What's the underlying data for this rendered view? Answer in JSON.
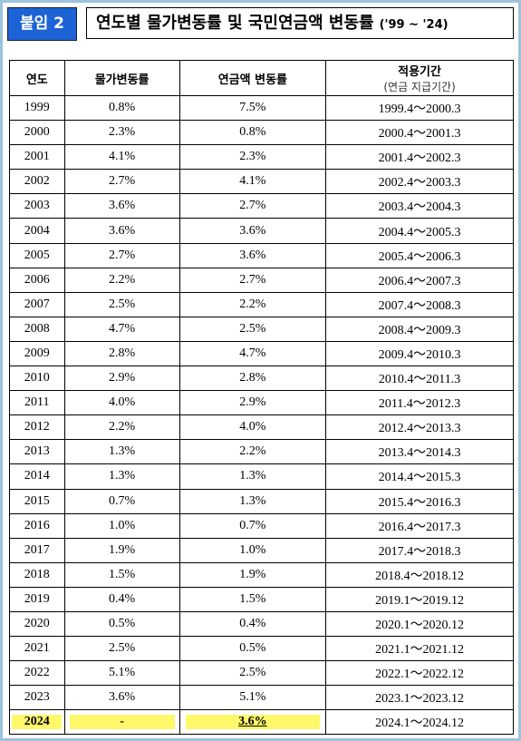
{
  "header": {
    "badge": "붙임 2",
    "title": "연도별 물가변동률 및 국민연금액 변동률",
    "title_suffix": "('99 ~ '24)"
  },
  "table": {
    "columns": [
      "연도",
      "물가변동률",
      "연금액 변동률",
      [
        "적용기간",
        "(연금 지급기간)"
      ]
    ],
    "rows": [
      [
        "1999",
        "0.8%",
        "7.5%",
        "1999.4～2000.3"
      ],
      [
        "2000",
        "2.3%",
        "0.8%",
        "2000.4～2001.3"
      ],
      [
        "2001",
        "4.1%",
        "2.3%",
        "2001.4～2002.3"
      ],
      [
        "2002",
        "2.7%",
        "4.1%",
        "2002.4～2003.3"
      ],
      [
        "2003",
        "3.6%",
        "2.7%",
        "2003.4～2004.3"
      ],
      [
        "2004",
        "3.6%",
        "3.6%",
        "2004.4～2005.3"
      ],
      [
        "2005",
        "2.7%",
        "3.6%",
        "2005.4～2006.3"
      ],
      [
        "2006",
        "2.2%",
        "2.7%",
        "2006.4～2007.3"
      ],
      [
        "2007",
        "2.5%",
        "2.2%",
        "2007.4～2008.3"
      ],
      [
        "2008",
        "4.7%",
        "2.5%",
        "2008.4～2009.3"
      ],
      [
        "2009",
        "2.8%",
        "4.7%",
        "2009.4～2010.3"
      ],
      [
        "2010",
        "2.9%",
        "2.8%",
        "2010.4～2011.3"
      ],
      [
        "2011",
        "4.0%",
        "2.9%",
        "2011.4～2012.3"
      ],
      [
        "2012",
        "2.2%",
        "4.0%",
        "2012.4～2013.3"
      ],
      [
        "2013",
        "1.3%",
        "2.2%",
        "2013.4～2014.3"
      ],
      [
        "2014",
        "1.3%",
        "1.3%",
        "2014.4～2015.3"
      ],
      [
        "2015",
        "0.7%",
        "1.3%",
        "2015.4～2016.3"
      ],
      [
        "2016",
        "1.0%",
        "0.7%",
        "2016.4～2017.3"
      ],
      [
        "2017",
        "1.9%",
        "1.0%",
        "2017.4～2018.3"
      ],
      [
        "2018",
        "1.5%",
        "1.9%",
        "2018.4～2018.12"
      ],
      [
        "2019",
        "0.4%",
        "1.5%",
        "2019.1～2019.12"
      ],
      [
        "2020",
        "0.5%",
        "0.4%",
        "2020.1～2020.12"
      ],
      [
        "2021",
        "2.5%",
        "0.5%",
        "2021.1～2021.12"
      ],
      [
        "2022",
        "5.1%",
        "2.5%",
        "2022.1～2022.12"
      ],
      [
        "2023",
        "3.6%",
        "5.1%",
        "2023.1～2023.12"
      ],
      [
        "2024",
        "-",
        "3.6%",
        "2024.1～2024.12"
      ]
    ]
  }
}
